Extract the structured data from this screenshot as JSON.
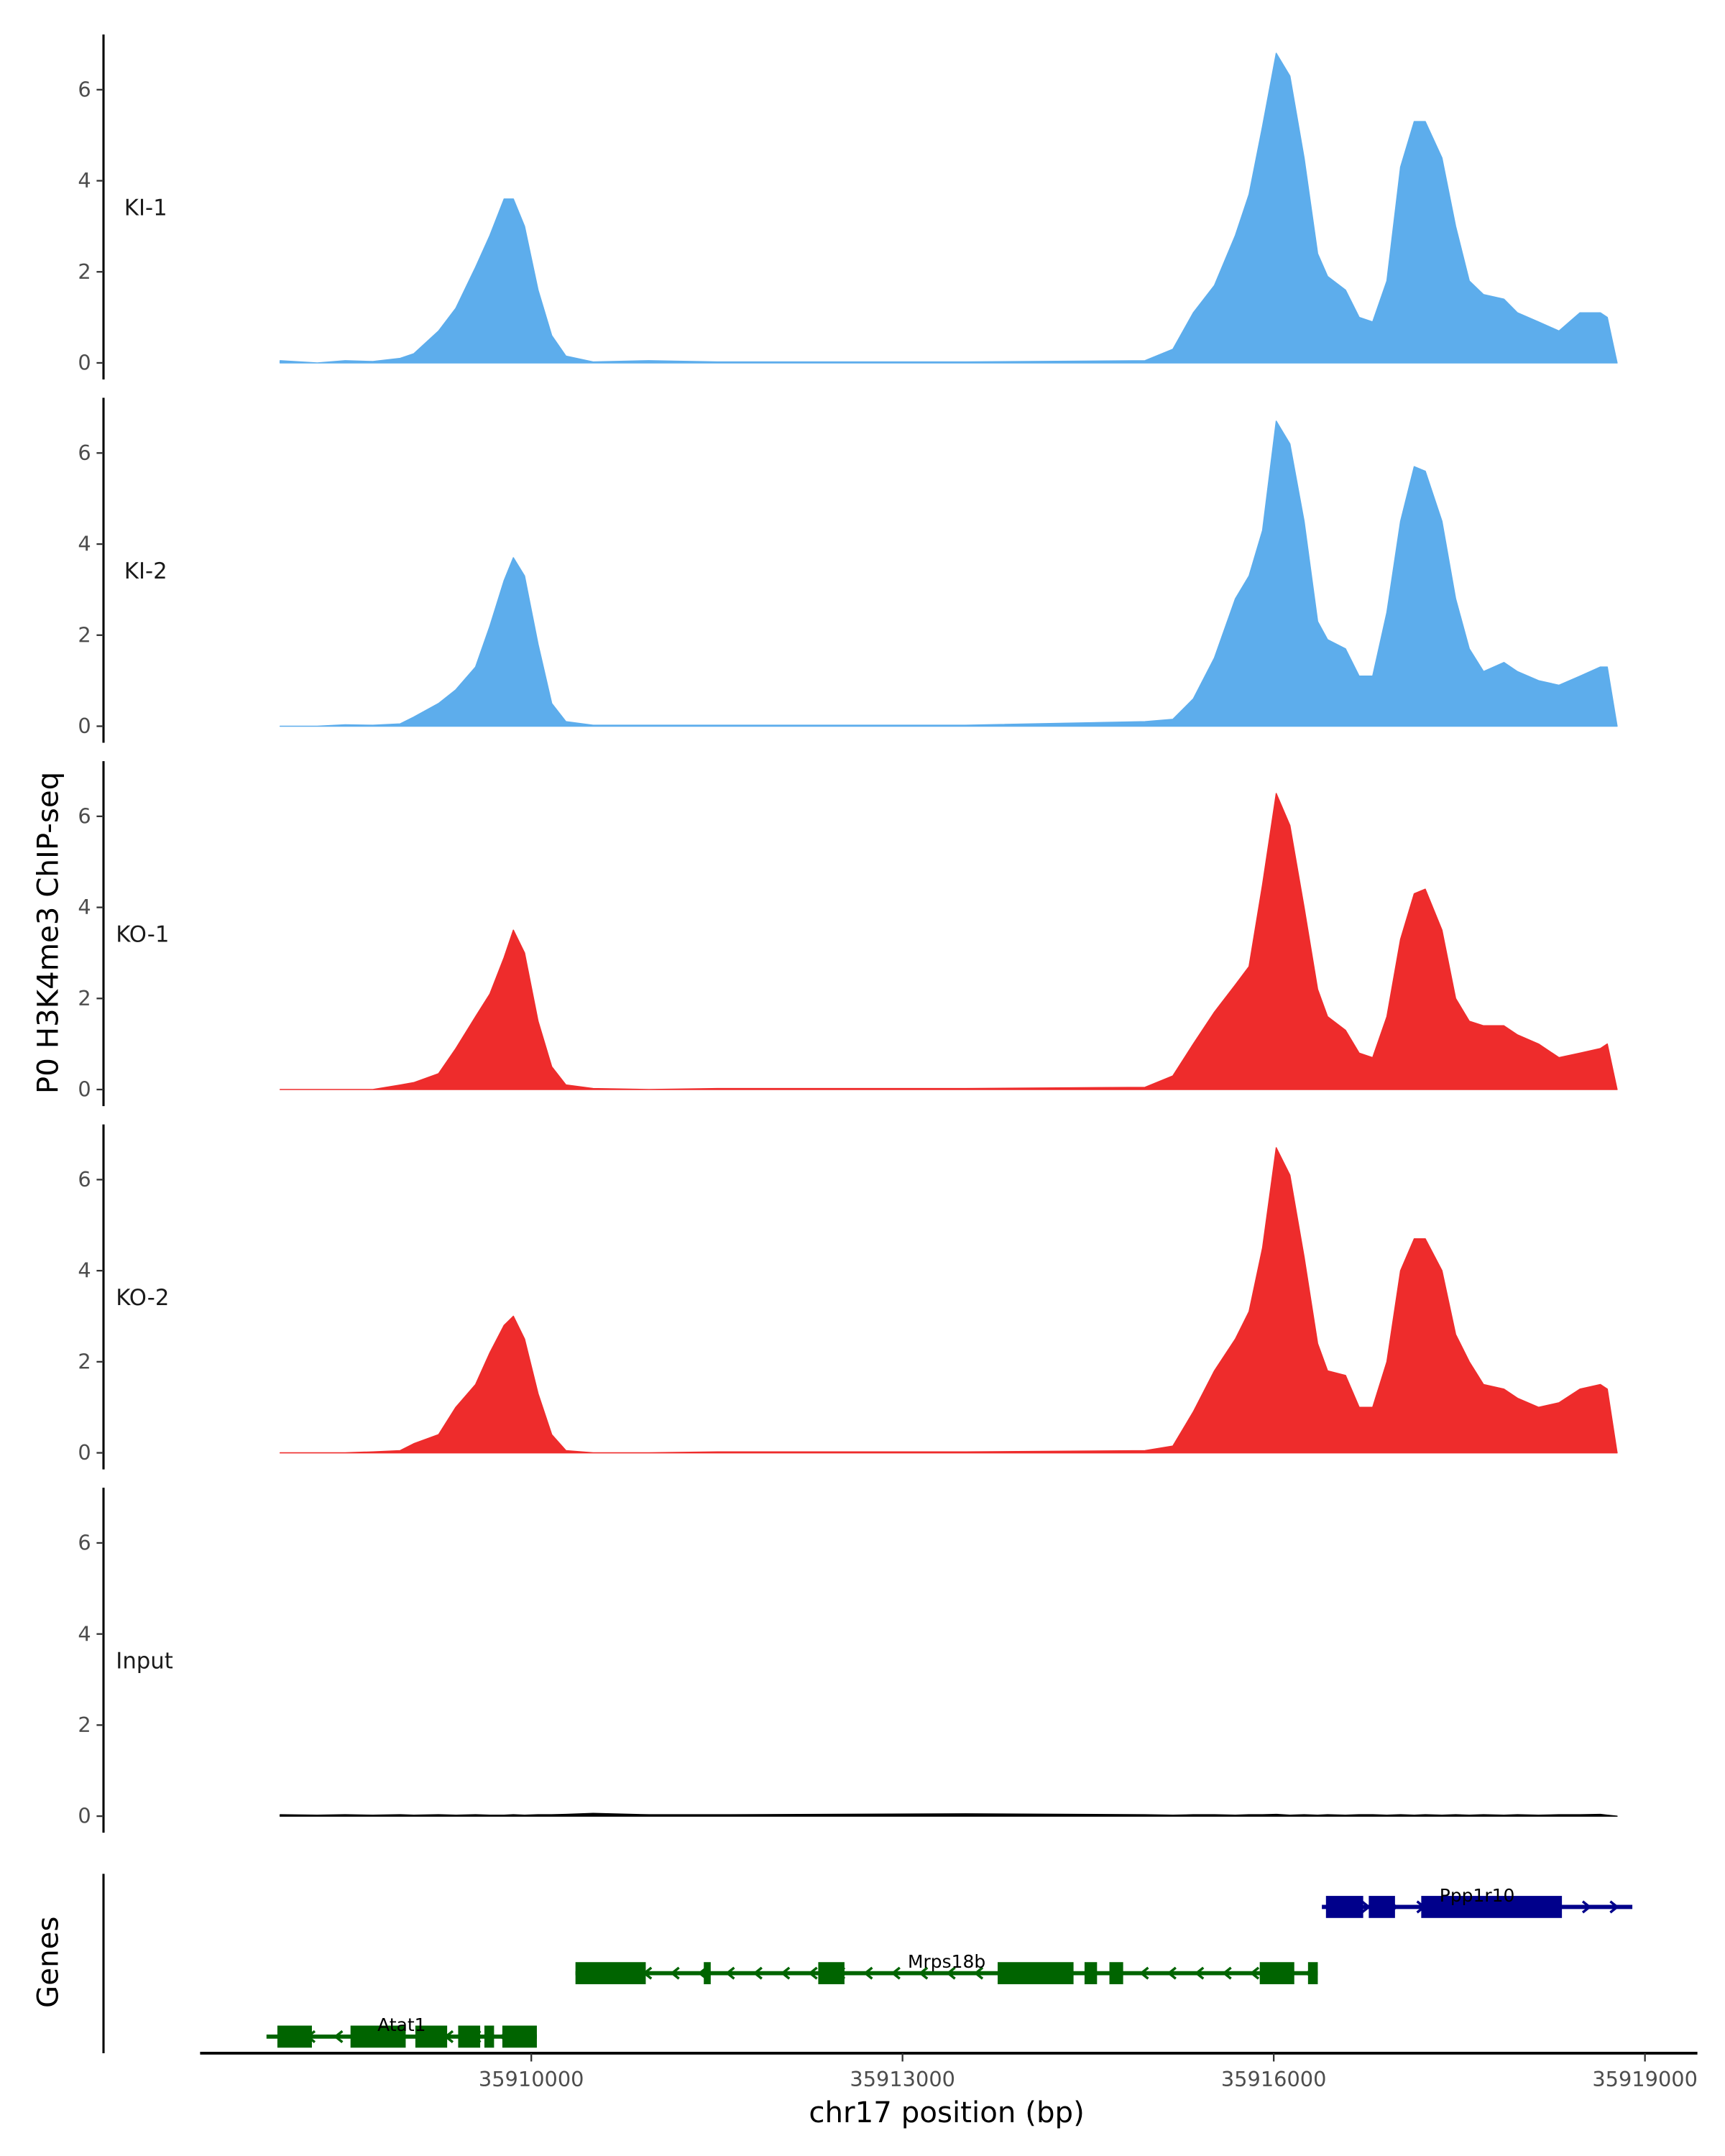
{
  "chart_data": {
    "type": "area",
    "ylabel": "P0 H3K4me3 ChIP-seq",
    "xlabel": "chr17 position (bp)",
    "genes_label": "Genes",
    "ylim": [
      0,
      7.2
    ],
    "yticks": [
      "0",
      "2",
      "4",
      "6"
    ],
    "xticks": [
      {
        "value": 35910000,
        "label": "35910000"
      },
      {
        "value": 35913000,
        "label": "35913000"
      },
      {
        "value": 35916000,
        "label": "35916000"
      },
      {
        "value": 35919000,
        "label": "35919000"
      }
    ],
    "x": [
      35907970,
      35908270,
      35908495,
      35908720,
      35908940,
      35909050,
      35909250,
      35909390,
      35909550,
      35909665,
      35909780,
      35909855,
      35909945,
      35910055,
      35910165,
      35910280,
      35910500,
      35910950,
      35911505,
      35913510,
      35914960,
      35915185,
      35915350,
      35915520,
      35915690,
      35915800,
      35915910,
      35916020,
      35916130,
      35916245,
      35916355,
      35916435,
      35916580,
      35916690,
      35916800,
      35916915,
      35917025,
      35917135,
      35917225,
      35917360,
      35917470,
      35917580,
      35917695,
      35917860,
      35917970,
      35918140,
      35918305,
      35918475,
      35918640,
      35918695,
      35918775
    ],
    "series": [
      {
        "name": "KI-1",
        "color": "#5DADEC",
        "values": [
          0.05,
          0,
          0.05,
          0.03,
          0.1,
          0.2,
          0.7,
          1.2,
          2.1,
          2.8,
          3.6,
          3.6,
          3.0,
          1.6,
          0.6,
          0.15,
          0.02,
          0.05,
          0.02,
          0.02,
          0.05,
          0.3,
          1.1,
          1.7,
          2.8,
          3.7,
          5.2,
          6.8,
          6.3,
          4.5,
          2.4,
          1.9,
          1.6,
          1.0,
          0.9,
          1.8,
          4.3,
          5.3,
          5.3,
          4.5,
          3.0,
          1.8,
          1.5,
          1.4,
          1.1,
          0.9,
          0.7,
          1.1,
          1.1,
          1.0,
          0
        ]
      },
      {
        "name": "KI-2",
        "color": "#5DADEC",
        "values": [
          0,
          0,
          0.03,
          0.02,
          0.05,
          0.2,
          0.5,
          0.8,
          1.3,
          2.2,
          3.2,
          3.7,
          3.3,
          1.8,
          0.5,
          0.1,
          0.02,
          0.02,
          0.02,
          0.02,
          0.1,
          0.15,
          0.6,
          1.5,
          2.8,
          3.3,
          4.3,
          6.7,
          6.2,
          4.5,
          2.3,
          1.9,
          1.7,
          1.1,
          1.1,
          2.5,
          4.5,
          5.7,
          5.6,
          4.5,
          2.8,
          1.7,
          1.2,
          1.4,
          1.2,
          1.0,
          0.9,
          1.1,
          1.3,
          1.3,
          0
        ]
      },
      {
        "name": "KO-1",
        "color": "#EE2C2C",
        "values": [
          0,
          0,
          0,
          0,
          0.1,
          0.15,
          0.35,
          0.9,
          1.6,
          2.1,
          2.9,
          3.5,
          3.0,
          1.5,
          0.5,
          0.1,
          0.02,
          0,
          0.02,
          0.02,
          0.05,
          0.3,
          1.0,
          1.7,
          2.3,
          2.7,
          4.5,
          6.5,
          5.8,
          4.0,
          2.2,
          1.6,
          1.3,
          0.8,
          0.7,
          1.6,
          3.3,
          4.3,
          4.4,
          3.5,
          2.0,
          1.5,
          1.4,
          1.4,
          1.2,
          1.0,
          0.7,
          0.8,
          0.9,
          1.0,
          0
        ]
      },
      {
        "name": "KO-2",
        "color": "#EE2C2C",
        "values": [
          0,
          0,
          0,
          0.02,
          0.05,
          0.2,
          0.4,
          1.0,
          1.5,
          2.2,
          2.8,
          3.0,
          2.5,
          1.3,
          0.4,
          0.05,
          0,
          0,
          0.02,
          0.02,
          0.05,
          0.15,
          0.9,
          1.8,
          2.5,
          3.1,
          4.5,
          6.7,
          6.1,
          4.3,
          2.4,
          1.8,
          1.7,
          1.0,
          1.0,
          2.0,
          4.0,
          4.7,
          4.7,
          4.0,
          2.6,
          2.0,
          1.5,
          1.4,
          1.2,
          1.0,
          1.1,
          1.4,
          1.5,
          1.4,
          0
        ]
      },
      {
        "name": "Input",
        "color": "#000000",
        "values": [
          0.03,
          0.02,
          0.03,
          0.02,
          0.03,
          0.02,
          0.03,
          0.02,
          0.03,
          0.02,
          0.02,
          0.03,
          0.02,
          0.03,
          0.03,
          0.04,
          0.06,
          0.03,
          0.03,
          0.05,
          0.03,
          0.02,
          0.03,
          0.03,
          0.02,
          0.03,
          0.03,
          0.04,
          0.02,
          0.03,
          0.02,
          0.03,
          0.02,
          0.03,
          0.03,
          0.02,
          0.03,
          0.02,
          0.03,
          0.02,
          0.03,
          0.02,
          0.03,
          0.02,
          0.03,
          0.02,
          0.03,
          0.03,
          0.04,
          0.02,
          0
        ]
      }
    ],
    "genes": [
      {
        "name": "Ppp1r10",
        "strand": "+",
        "color": "#00008B",
        "row": 0,
        "start": 35916389,
        "end": 35918898,
        "exons": [
          [
            35916422,
            35916723
          ],
          [
            35916768,
            35916980
          ],
          [
            35917192,
            35918329
          ]
        ]
      },
      {
        "name": "Mrps18b",
        "strand": "-",
        "color": "#006400",
        "row": 1,
        "start": 35910357,
        "end": 35916356,
        "exons": [
          [
            35910357,
            35910925
          ],
          [
            35911394,
            35911450
          ],
          [
            35912319,
            35912531
          ],
          [
            35913769,
            35914382
          ],
          [
            35914471,
            35914572
          ],
          [
            35914672,
            35914783
          ],
          [
            35915887,
            35916166
          ],
          [
            35916277,
            35916356
          ]
        ]
      },
      {
        "name": "Atat1",
        "strand": "-",
        "color": "#006400",
        "row": 2,
        "start": 35907860,
        "end": 35910045,
        "exons": [
          [
            35907948,
            35908227
          ],
          [
            35908539,
            35908985
          ],
          [
            35909063,
            35909320
          ],
          [
            35909409,
            35909587
          ],
          [
            35909621,
            35909699
          ],
          [
            35909766,
            35910045
          ]
        ]
      }
    ]
  }
}
